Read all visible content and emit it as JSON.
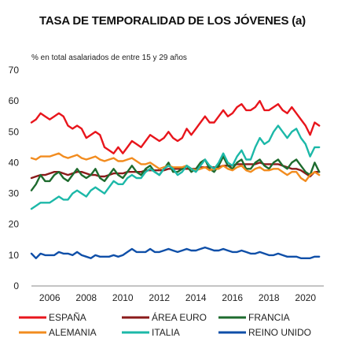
{
  "chart_data": {
    "type": "line",
    "title": "TASA DE TEMPORALIDAD DE LOS JÓVENES (a)",
    "subtitle": "% en total asalariados de entre 15 y 29 años",
    "ylim": [
      0,
      70
    ],
    "yticks": [
      0,
      10,
      20,
      30,
      40,
      50,
      60,
      70
    ],
    "xlim": [
      2005.0,
      2021.0
    ],
    "xticks": [
      "2006",
      "2008",
      "2010",
      "2012",
      "2014",
      "2016",
      "2018",
      "2020"
    ],
    "grid": false,
    "legend_position": "bottom",
    "x": [
      2005.0,
      2005.25,
      2005.5,
      2005.75,
      2006.0,
      2006.25,
      2006.5,
      2006.75,
      2007.0,
      2007.25,
      2007.5,
      2007.75,
      2008.0,
      2008.25,
      2008.5,
      2008.75,
      2009.0,
      2009.25,
      2009.5,
      2009.75,
      2010.0,
      2010.25,
      2010.5,
      2010.75,
      2011.0,
      2011.25,
      2011.5,
      2011.75,
      2012.0,
      2012.25,
      2012.5,
      2012.75,
      2013.0,
      2013.25,
      2013.5,
      2013.75,
      2014.0,
      2014.25,
      2014.5,
      2014.75,
      2015.0,
      2015.25,
      2015.5,
      2015.75,
      2016.0,
      2016.25,
      2016.5,
      2016.75,
      2017.0,
      2017.25,
      2017.5,
      2017.75,
      2018.0,
      2018.25,
      2018.5,
      2018.75,
      2019.0,
      2019.25,
      2019.5,
      2019.75,
      2020.0,
      2020.25,
      2020.5,
      2020.75
    ],
    "series": [
      {
        "name": "ESPAÑA",
        "color": "#e8151c",
        "values": [
          53,
          54,
          56,
          55,
          54,
          55,
          56,
          55,
          52,
          51,
          52,
          51,
          48,
          49,
          50,
          49,
          45,
          44,
          43,
          45,
          43,
          45,
          47,
          46,
          45,
          47,
          49,
          48,
          47,
          48,
          50,
          48,
          47,
          48,
          51,
          49,
          51,
          53,
          55,
          53,
          53,
          55,
          57,
          55,
          56,
          58,
          59,
          57,
          57,
          58,
          60,
          57,
          57,
          58,
          59,
          57,
          56,
          58,
          56,
          54,
          52,
          49,
          53,
          52
        ]
      },
      {
        "name": "ÁREA EURO",
        "color": "#8b1a1a",
        "values": [
          35,
          35.5,
          36,
          36,
          36.5,
          37,
          37,
          36.5,
          36,
          36.5,
          37,
          37,
          36.5,
          36,
          36,
          35.5,
          35.5,
          36,
          36.5,
          36.5,
          36.5,
          37,
          37,
          37,
          37,
          37.5,
          37.5,
          37.5,
          37.5,
          37.5,
          38,
          38,
          38,
          38,
          38,
          38,
          38,
          38.5,
          38.5,
          38.5,
          38.5,
          38.5,
          39,
          39,
          39,
          39.5,
          39.5,
          39.5,
          39.5,
          39.5,
          40,
          39.5,
          39.5,
          39.5,
          39.5,
          39,
          38.5,
          38,
          38,
          37.5,
          36.5,
          35.5,
          37,
          37
        ]
      },
      {
        "name": "FRANCIA",
        "color": "#1e6b2e",
        "values": [
          31,
          33,
          36,
          34,
          34,
          36,
          37,
          35,
          34,
          36,
          38,
          36,
          35,
          36,
          38,
          35,
          34,
          36,
          38,
          36,
          35,
          37,
          39,
          37,
          36,
          38,
          39,
          37,
          36,
          38,
          40,
          37,
          37,
          38,
          39,
          37,
          38,
          40,
          41,
          38,
          37,
          39,
          42,
          39,
          38,
          40,
          41,
          38,
          38,
          40,
          41,
          39,
          38,
          40,
          41,
          39,
          38,
          40,
          41,
          39,
          37,
          36,
          40,
          37
        ]
      },
      {
        "name": "ALEMANIA",
        "color": "#f28c1f",
        "values": [
          41.5,
          41,
          42,
          42,
          42,
          42.5,
          43,
          42,
          41.5,
          42,
          42.5,
          41.5,
          41,
          41.5,
          42,
          41,
          40.5,
          41,
          41.5,
          40.5,
          40.5,
          41,
          41.5,
          40.5,
          39.5,
          39.5,
          40,
          39,
          38,
          38.5,
          39,
          38.5,
          38.5,
          38.5,
          39,
          38,
          37.5,
          38,
          38.5,
          37.5,
          38,
          38,
          39,
          38,
          37.5,
          38.5,
          39,
          37.5,
          37,
          38,
          38.5,
          37.5,
          37.5,
          38,
          38,
          37,
          36,
          37,
          37,
          35,
          34,
          36,
          37,
          36
        ]
      },
      {
        "name": "ITALIA",
        "color": "#1cb8a8",
        "values": [
          25,
          26,
          27,
          27,
          27,
          28,
          29,
          28,
          28,
          30,
          31,
          30,
          29,
          31,
          32,
          31,
          30,
          32,
          34,
          33,
          33,
          35,
          36,
          35,
          35,
          37,
          38,
          37,
          36,
          38,
          39,
          38,
          36,
          37,
          39,
          38,
          37,
          39,
          41,
          39,
          38,
          40,
          43,
          40,
          39,
          42,
          44,
          41,
          41,
          45,
          48,
          46,
          47,
          50,
          52,
          50,
          48,
          50,
          51,
          48,
          46,
          42,
          45,
          45
        ]
      },
      {
        "name": "REINO UNIDO",
        "color": "#0f4fa8",
        "values": [
          10.5,
          9,
          10.5,
          10,
          10,
          10,
          11,
          10.5,
          10.5,
          10,
          11,
          10,
          9.5,
          9,
          10,
          9.5,
          9.5,
          9.5,
          10,
          9.5,
          10,
          11,
          12,
          11,
          11,
          11,
          12,
          11,
          11,
          11.5,
          12,
          11.5,
          11,
          11.5,
          12,
          11.5,
          11.5,
          12,
          12.5,
          12,
          11.5,
          11.5,
          12,
          11.5,
          11,
          11,
          11.5,
          11,
          10.5,
          10.5,
          11,
          10.5,
          10,
          10,
          10.5,
          10,
          9.5,
          9.5,
          9.5,
          9,
          9,
          9,
          9.5,
          9.5
        ]
      }
    ]
  }
}
